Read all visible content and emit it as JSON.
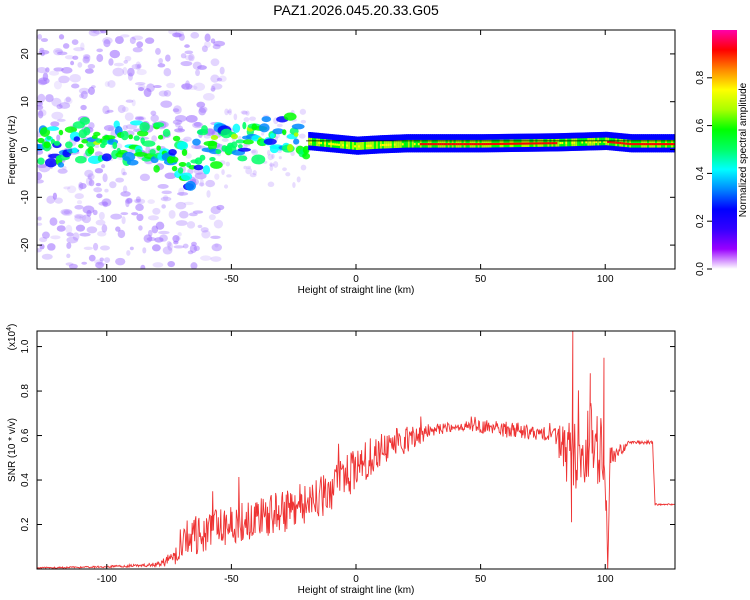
{
  "title": "PAZ1.2026.045.20.33.G05",
  "chart_data": [
    {
      "type": "heatmap",
      "name": "spectrogram",
      "xlabel": "Height of straight line (km)",
      "ylabel": "Frequency (Hz)",
      "xlim": [
        -128,
        128
      ],
      "ylim": [
        -25,
        25
      ],
      "xticks": [
        -100,
        -50,
        0,
        50,
        100
      ],
      "yticks": [
        -20,
        -10,
        0,
        10,
        20
      ],
      "colorbar": {
        "label": "Normalized spectral amplitude",
        "range": [
          0,
          1
        ],
        "ticks": [
          "0.0",
          "0.2",
          "0.4",
          "0.6",
          "0.8"
        ],
        "tick_values": [
          0,
          0.2,
          0.4,
          0.6,
          0.8
        ],
        "colors": [
          "#ffffff",
          "#9900ff",
          "#3300ff",
          "#0000ff",
          "#0088ff",
          "#00ffff",
          "#00ff66",
          "#00ff00",
          "#aaff00",
          "#ffff00",
          "#ff8800",
          "#ff0000",
          "#ff00aa"
        ]
      },
      "ridge": {
        "x": [
          -128,
          -100,
          -80,
          -75,
          -70,
          -68,
          -65,
          -60,
          -50,
          -40,
          -32,
          -25,
          -20,
          -10,
          0,
          10,
          20,
          50,
          80,
          100,
          110,
          128
        ],
        "y": [
          0.5,
          1.0,
          1.5,
          0.0,
          -2.0,
          -4.5,
          -2.0,
          0.0,
          1.5,
          2.5,
          4.0,
          2.5,
          1.5,
          1.0,
          0.5,
          0.8,
          1.0,
          1.0,
          1.2,
          1.5,
          1.0,
          1.0
        ]
      }
    },
    {
      "type": "line",
      "name": "snr",
      "xlabel": "Height of straight line (km)",
      "ylabel": "SNR (10 * v/v)",
      "y_scale_label": "(x10",
      "y_scale_exponent": "4",
      "y_scale_suffix": ")",
      "xlim": [
        -128,
        128
      ],
      "ylim": [
        0,
        1.07
      ],
      "xticks": [
        -100,
        -50,
        0,
        50,
        100
      ],
      "yticks": [
        0.2,
        0.4,
        0.6,
        0.8,
        1.0
      ],
      "ytick_labels": [
        "0.2",
        "0.4",
        "0.6",
        "0.8",
        "1.0"
      ],
      "color": "#ee3333",
      "envelope": {
        "x": [
          -128,
          -100,
          -80,
          -72,
          -70,
          -60,
          -50,
          -40,
          -30,
          -20,
          -10,
          0,
          10,
          20,
          30,
          40,
          50,
          60,
          70,
          80,
          85,
          95,
          100,
          101,
          102,
          110,
          119,
          120,
          128
        ],
        "mean": [
          0.005,
          0.01,
          0.02,
          0.06,
          0.13,
          0.17,
          0.2,
          0.23,
          0.26,
          0.29,
          0.36,
          0.45,
          0.54,
          0.58,
          0.62,
          0.64,
          0.64,
          0.63,
          0.62,
          0.6,
          0.5,
          0.58,
          0.45,
          0.0,
          0.5,
          0.57,
          0.57,
          0.29,
          0.29
        ],
        "noise": [
          0.003,
          0.004,
          0.01,
          0.04,
          0.08,
          0.09,
          0.09,
          0.09,
          0.1,
          0.1,
          0.1,
          0.1,
          0.08,
          0.06,
          0.03,
          0.02,
          0.03,
          0.04,
          0.04,
          0.04,
          0.18,
          0.18,
          0.2,
          0.0,
          0.05,
          0.008,
          0.008,
          0.004,
          0.004
        ]
      },
      "peaks": [
        {
          "x": 87,
          "y": 1.07
        },
        {
          "x": 86.5,
          "y": 0.21
        },
        {
          "x": 99.5,
          "y": 0.95
        },
        {
          "x": 101,
          "y": 0.0
        },
        {
          "x": 94,
          "y": 0.88
        }
      ]
    }
  ]
}
